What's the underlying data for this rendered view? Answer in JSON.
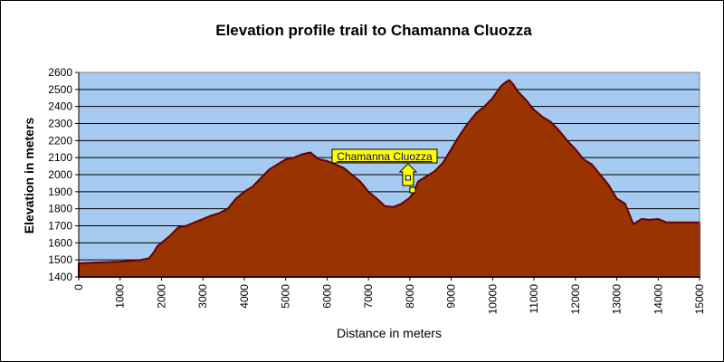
{
  "chart_data": {
    "type": "area",
    "title": "Elevation profile trail to Chamanna Cluozza",
    "xlabel": "Distance in meters",
    "ylabel": "Elevation in meters",
    "xlim": [
      0,
      15000
    ],
    "ylim": [
      1400,
      2600
    ],
    "xticks": [
      "0",
      "1000",
      "2000",
      "3000",
      "4000",
      "5000",
      "6000",
      "7000",
      "8000",
      "9000",
      "10000",
      "11000",
      "12000",
      "13000",
      "14000",
      "15000"
    ],
    "yticks": [
      "1400",
      "1500",
      "1600",
      "1700",
      "1800",
      "1900",
      "2000",
      "2100",
      "2200",
      "2300",
      "2400",
      "2500",
      "2600"
    ],
    "grid": "horizontal",
    "legend": "none",
    "colors": {
      "plot_background": "#a6caf0",
      "fill": "#993300",
      "outline": "#660000",
      "annotation_background": "#ffff00",
      "annotation_text": "#0000a0"
    },
    "annotation": {
      "label": "Chamanna Cluozza",
      "x": 8000,
      "y": 1910,
      "icon": "hut-icon"
    },
    "series": [
      {
        "x": [
          0,
          500,
          1000,
          1300,
          1500,
          1700,
          1800,
          1900,
          2000,
          2200,
          2400,
          2600,
          2800,
          3000,
          3200,
          3400,
          3600,
          3800,
          4000,
          4200,
          4400,
          4600,
          4800,
          5000,
          5200,
          5400,
          5600,
          5800,
          6000,
          6200,
          6400,
          6600,
          6800,
          7000,
          7200,
          7400,
          7600,
          7800,
          8000,
          8100,
          8200,
          8400,
          8600,
          8800,
          9000,
          9200,
          9400,
          9600,
          9800,
          10000,
          10200,
          10300,
          10400,
          10500,
          10600,
          10800,
          11000,
          11200,
          11400,
          11600,
          11800,
          12000,
          12200,
          12400,
          12600,
          12800,
          13000,
          13200,
          13400,
          13600,
          13800,
          14000,
          14200,
          14400,
          14600,
          15000
        ],
        "y": [
          1480,
          1485,
          1490,
          1495,
          1500,
          1510,
          1540,
          1580,
          1600,
          1640,
          1690,
          1700,
          1720,
          1740,
          1760,
          1775,
          1800,
          1860,
          1900,
          1930,
          1980,
          2030,
          2060,
          2090,
          2100,
          2120,
          2130,
          2090,
          2080,
          2060,
          2040,
          2000,
          1960,
          1900,
          1860,
          1815,
          1810,
          1830,
          1865,
          1900,
          1960,
          1990,
          2020,
          2070,
          2150,
          2230,
          2300,
          2360,
          2400,
          2450,
          2520,
          2540,
          2555,
          2530,
          2490,
          2440,
          2380,
          2340,
          2310,
          2260,
          2200,
          2150,
          2090,
          2060,
          2000,
          1940,
          1860,
          1830,
          1710,
          1740,
          1735,
          1740,
          1720,
          1720,
          1720,
          1720
        ]
      }
    ]
  }
}
